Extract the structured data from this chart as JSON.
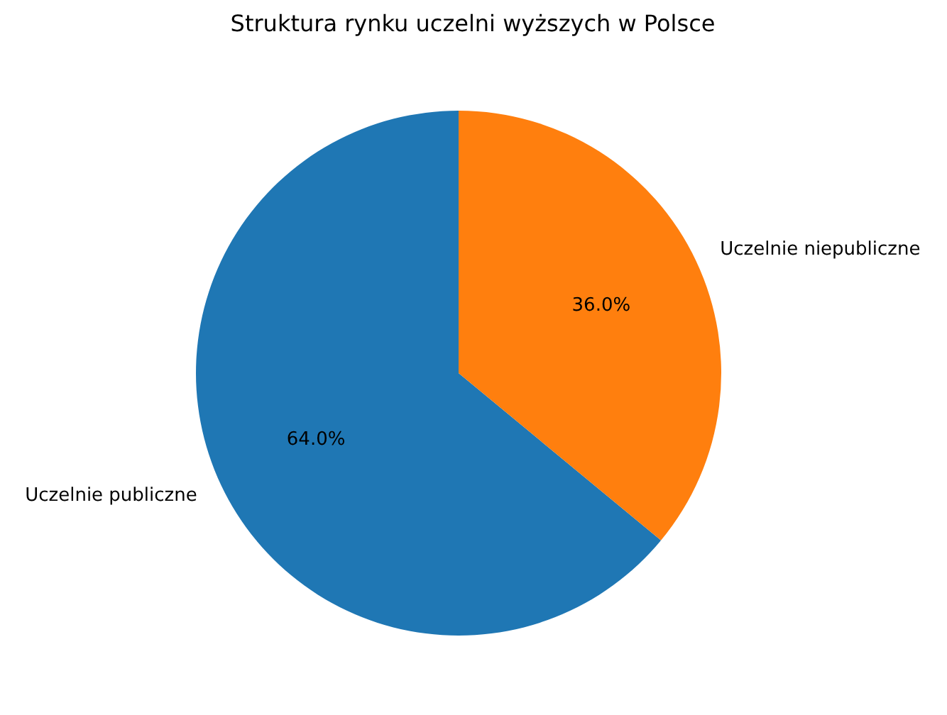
{
  "chart_data": {
    "type": "pie",
    "title": "Struktura rynku uczelni wyższych w Polsce",
    "categories": [
      "Uczelnie publiczne",
      "Uczelnie niepubliczne"
    ],
    "values": [
      64,
      36
    ],
    "colors": [
      "#1f77b4",
      "#ff7f0e"
    ],
    "value_labels": [
      "64.0%",
      "36.0%"
    ],
    "legend": false
  }
}
